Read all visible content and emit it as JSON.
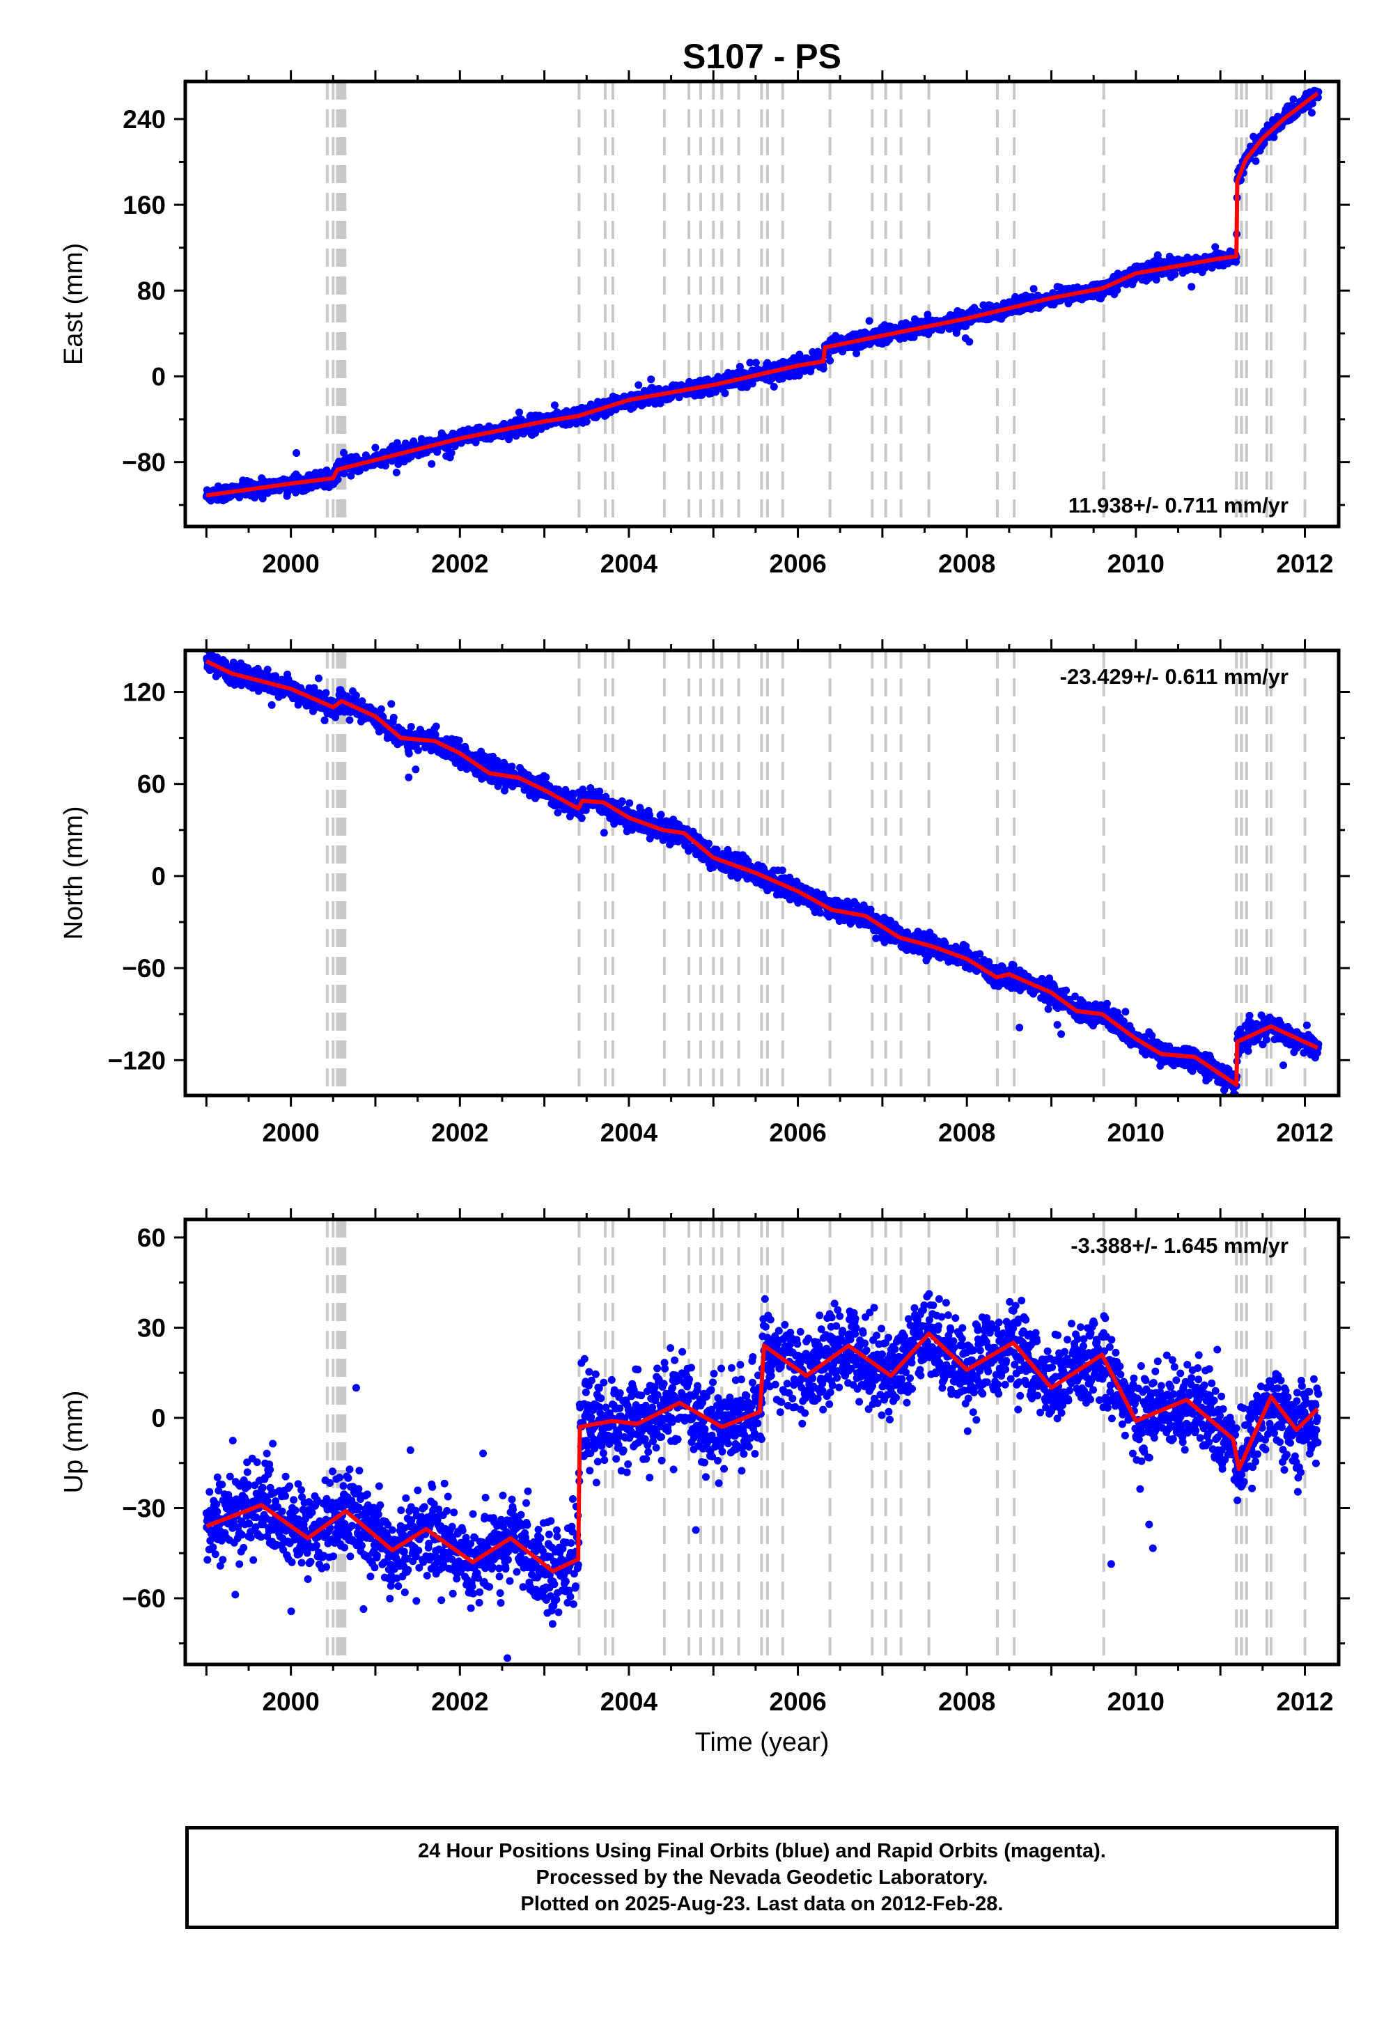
{
  "title": "S107 - PS",
  "xlabel": "Time (year)",
  "footer": {
    "line1": "24 Hour Positions Using Final Orbits (blue) and Rapid Orbits (magenta).",
    "line2": "Processed by the Nevada Geodetic Laboratory.",
    "line3": "Plotted on 2025-Aug-23. Last data on 2012-Feb-28."
  },
  "colors": {
    "final_orbits": "#0000ff",
    "rapid_orbits": "#ff00ff",
    "model": "#ff0000",
    "event_lines": "#c8c8c8"
  },
  "chart_data": [
    {
      "type": "scatter",
      "panel": "east",
      "ylabel": "East (mm)",
      "rate": "11.938+/- 0.711 mm/yr",
      "rate_position": "bottom-right",
      "xlim": [
        1998.75,
        2012.4
      ],
      "ylim": [
        -140,
        275
      ],
      "yticks": [
        -80,
        0,
        80,
        160,
        240
      ],
      "xticks": [
        2000,
        2002,
        2004,
        2006,
        2008,
        2010,
        2012
      ],
      "model": [
        {
          "x": 1999.0,
          "y": -111
        },
        {
          "x": 2000.0,
          "y": -100
        },
        {
          "x": 2000.5,
          "y": -95
        },
        {
          "x": 2000.55,
          "y": -87
        },
        {
          "x": 2001.0,
          "y": -78
        },
        {
          "x": 2002.0,
          "y": -58
        },
        {
          "x": 2003.0,
          "y": -42
        },
        {
          "x": 2003.4,
          "y": -37
        },
        {
          "x": 2004.0,
          "y": -22
        },
        {
          "x": 2005.0,
          "y": -8
        },
        {
          "x": 2006.0,
          "y": 10
        },
        {
          "x": 2006.3,
          "y": 14
        },
        {
          "x": 2006.32,
          "y": 27
        },
        {
          "x": 2007.0,
          "y": 38
        },
        {
          "x": 2008.0,
          "y": 54
        },
        {
          "x": 2009.0,
          "y": 73
        },
        {
          "x": 2009.6,
          "y": 82
        },
        {
          "x": 2010.0,
          "y": 96
        },
        {
          "x": 2011.0,
          "y": 110
        },
        {
          "x": 2011.19,
          "y": 112
        },
        {
          "x": 2011.2,
          "y": 182
        },
        {
          "x": 2011.3,
          "y": 202
        },
        {
          "x": 2011.5,
          "y": 222
        },
        {
          "x": 2011.75,
          "y": 240
        },
        {
          "x": 2012.15,
          "y": 264
        }
      ],
      "scatter_sd": 3.5
    },
    {
      "type": "scatter",
      "panel": "north",
      "ylabel": "North (mm)",
      "rate": "-23.429+/- 0.611 mm/yr",
      "rate_position": "top-right",
      "xlim": [
        1998.75,
        2012.4
      ],
      "ylim": [
        -143,
        147
      ],
      "yticks": [
        -120,
        -60,
        0,
        60,
        120
      ],
      "xticks": [
        2000,
        2002,
        2004,
        2006,
        2008,
        2010,
        2012
      ],
      "model": [
        {
          "x": 1999.0,
          "y": 140
        },
        {
          "x": 1999.3,
          "y": 132
        },
        {
          "x": 2000.0,
          "y": 122
        },
        {
          "x": 2000.5,
          "y": 110
        },
        {
          "x": 2000.6,
          "y": 114
        },
        {
          "x": 2001.0,
          "y": 104
        },
        {
          "x": 2001.3,
          "y": 90
        },
        {
          "x": 2001.7,
          "y": 88
        },
        {
          "x": 2002.0,
          "y": 80
        },
        {
          "x": 2002.35,
          "y": 67
        },
        {
          "x": 2002.7,
          "y": 64
        },
        {
          "x": 2003.0,
          "y": 56
        },
        {
          "x": 2003.4,
          "y": 44
        },
        {
          "x": 2003.45,
          "y": 49
        },
        {
          "x": 2003.7,
          "y": 48
        },
        {
          "x": 2004.0,
          "y": 38
        },
        {
          "x": 2004.4,
          "y": 30
        },
        {
          "x": 2004.65,
          "y": 28
        },
        {
          "x": 2005.0,
          "y": 12
        },
        {
          "x": 2005.5,
          "y": 2
        },
        {
          "x": 2006.0,
          "y": -10
        },
        {
          "x": 2006.4,
          "y": -22
        },
        {
          "x": 2006.8,
          "y": -26
        },
        {
          "x": 2007.2,
          "y": -40
        },
        {
          "x": 2007.6,
          "y": -46
        },
        {
          "x": 2008.0,
          "y": -54
        },
        {
          "x": 2008.35,
          "y": -66
        },
        {
          "x": 2008.5,
          "y": -64
        },
        {
          "x": 2009.0,
          "y": -76
        },
        {
          "x": 2009.3,
          "y": -88
        },
        {
          "x": 2009.6,
          "y": -90
        },
        {
          "x": 2010.0,
          "y": -106
        },
        {
          "x": 2010.3,
          "y": -116
        },
        {
          "x": 2010.7,
          "y": -118
        },
        {
          "x": 2011.19,
          "y": -136
        },
        {
          "x": 2011.2,
          "y": -108
        },
        {
          "x": 2011.6,
          "y": -98
        },
        {
          "x": 2012.15,
          "y": -112
        }
      ],
      "scatter_sd": 3.5
    },
    {
      "type": "scatter",
      "panel": "up",
      "ylabel": "Up (mm)",
      "rate": "-3.388+/- 1.645 mm/yr",
      "rate_position": "top-right",
      "xlim": [
        1998.75,
        2012.4
      ],
      "ylim": [
        -82,
        66
      ],
      "yticks": [
        -60,
        -30,
        0,
        30,
        60
      ],
      "xticks": [
        2000,
        2002,
        2004,
        2006,
        2008,
        2010,
        2012
      ],
      "model": [
        {
          "x": 1999.0,
          "y": -36
        },
        {
          "x": 1999.65,
          "y": -29
        },
        {
          "x": 2000.2,
          "y": -40
        },
        {
          "x": 2000.65,
          "y": -31
        },
        {
          "x": 2001.2,
          "y": -44
        },
        {
          "x": 2001.6,
          "y": -37
        },
        {
          "x": 2002.15,
          "y": -48
        },
        {
          "x": 2002.6,
          "y": -40
        },
        {
          "x": 2003.1,
          "y": -51
        },
        {
          "x": 2003.4,
          "y": -47
        },
        {
          "x": 2003.42,
          "y": -3
        },
        {
          "x": 2003.8,
          "y": -1
        },
        {
          "x": 2004.1,
          "y": -2
        },
        {
          "x": 2004.6,
          "y": 5
        },
        {
          "x": 2005.1,
          "y": -3
        },
        {
          "x": 2005.55,
          "y": 2
        },
        {
          "x": 2005.6,
          "y": 24
        },
        {
          "x": 2006.1,
          "y": 14
        },
        {
          "x": 2006.6,
          "y": 24
        },
        {
          "x": 2007.1,
          "y": 14
        },
        {
          "x": 2007.55,
          "y": 28
        },
        {
          "x": 2008.0,
          "y": 16
        },
        {
          "x": 2008.55,
          "y": 25
        },
        {
          "x": 2009.0,
          "y": 10
        },
        {
          "x": 2009.6,
          "y": 21
        },
        {
          "x": 2010.0,
          "y": -1
        },
        {
          "x": 2010.6,
          "y": 6
        },
        {
          "x": 2011.15,
          "y": -7
        },
        {
          "x": 2011.22,
          "y": -17
        },
        {
          "x": 2011.6,
          "y": 7
        },
        {
          "x": 2011.9,
          "y": -4
        },
        {
          "x": 2012.15,
          "y": 3
        }
      ],
      "scatter_sd": 7
    }
  ],
  "event_years": [
    2000.43,
    2000.5,
    2000.55,
    2000.58,
    2000.61,
    2000.64,
    2003.41,
    2003.72,
    2003.81,
    2004.42,
    2004.71,
    2004.85,
    2005.0,
    2005.1,
    2005.3,
    2005.57,
    2005.64,
    2005.82,
    2006.38,
    2006.88,
    2007.04,
    2007.22,
    2007.55,
    2008.36,
    2008.56,
    2009.62,
    2011.19,
    2011.25,
    2011.31,
    2011.55,
    2011.6,
    2012.0
  ]
}
